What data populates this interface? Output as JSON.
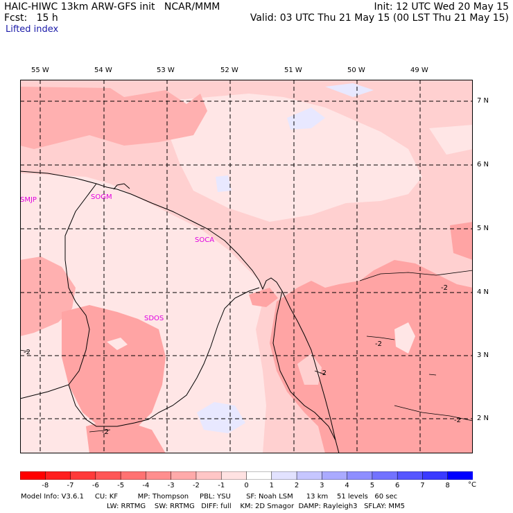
{
  "header": {
    "model": "HAIC-HIWC 13km ARW-GFS init",
    "org": "NCAR/MMM",
    "init": "Init: 12 UTC Wed 20 May 15",
    "fcst_label": "Fcst:",
    "fcst_value": "15 h",
    "valid": "Valid: 03 UTC Thu 21 May 15 (00 LST Thu 21 May 15)",
    "field": "Lifted index"
  },
  "map": {
    "lon_labels": [
      "55 W",
      "54 W",
      "53 W",
      "52 W",
      "51 W",
      "50 W",
      "49 W"
    ],
    "lat_labels": [
      "7 N",
      "6 N",
      "5 N",
      "4 N",
      "3 N",
      "2 N"
    ],
    "stations": [
      "SMJP",
      "SOGM",
      "SOCA",
      "SDOS"
    ],
    "contour_labels": [
      "-2",
      "-2",
      "-2",
      "-2",
      "-2",
      "-2"
    ],
    "colors": {
      "border": "#000000",
      "grid": "#000000",
      "station": "#e000e0"
    }
  },
  "colorbar": {
    "labels": [
      "-8",
      "-7",
      "-6",
      "-5",
      "-4",
      "-3",
      "-2",
      "-1",
      "0",
      "1",
      "2",
      "3",
      "4",
      "5",
      "6",
      "7",
      "8"
    ],
    "unit": "°C",
    "colors": [
      "#ff0000",
      "#ff1e1e",
      "#ff3a3a",
      "#ff5656",
      "#ff7272",
      "#ff8e8e",
      "#ffaaaa",
      "#ffc6c6",
      "#ffe2e2",
      "#ffffff",
      "#e2e2ff",
      "#c6c6ff",
      "#aaaaff",
      "#8e8eff",
      "#7272ff",
      "#5656ff",
      "#3a3aff",
      "#0000ff"
    ]
  },
  "footer": {
    "line1": "Model Info: V3.6.1     CU: KF         MP: Thompson     PBL: YSU       SF: Noah LSM      13 km    51 levels   60 sec",
    "line2": "LW: RRTMG    SW: RRTMG   DIFF: full    KM: 2D Smagor  DAMP: Rayleigh3   SFLAY: MM5"
  }
}
